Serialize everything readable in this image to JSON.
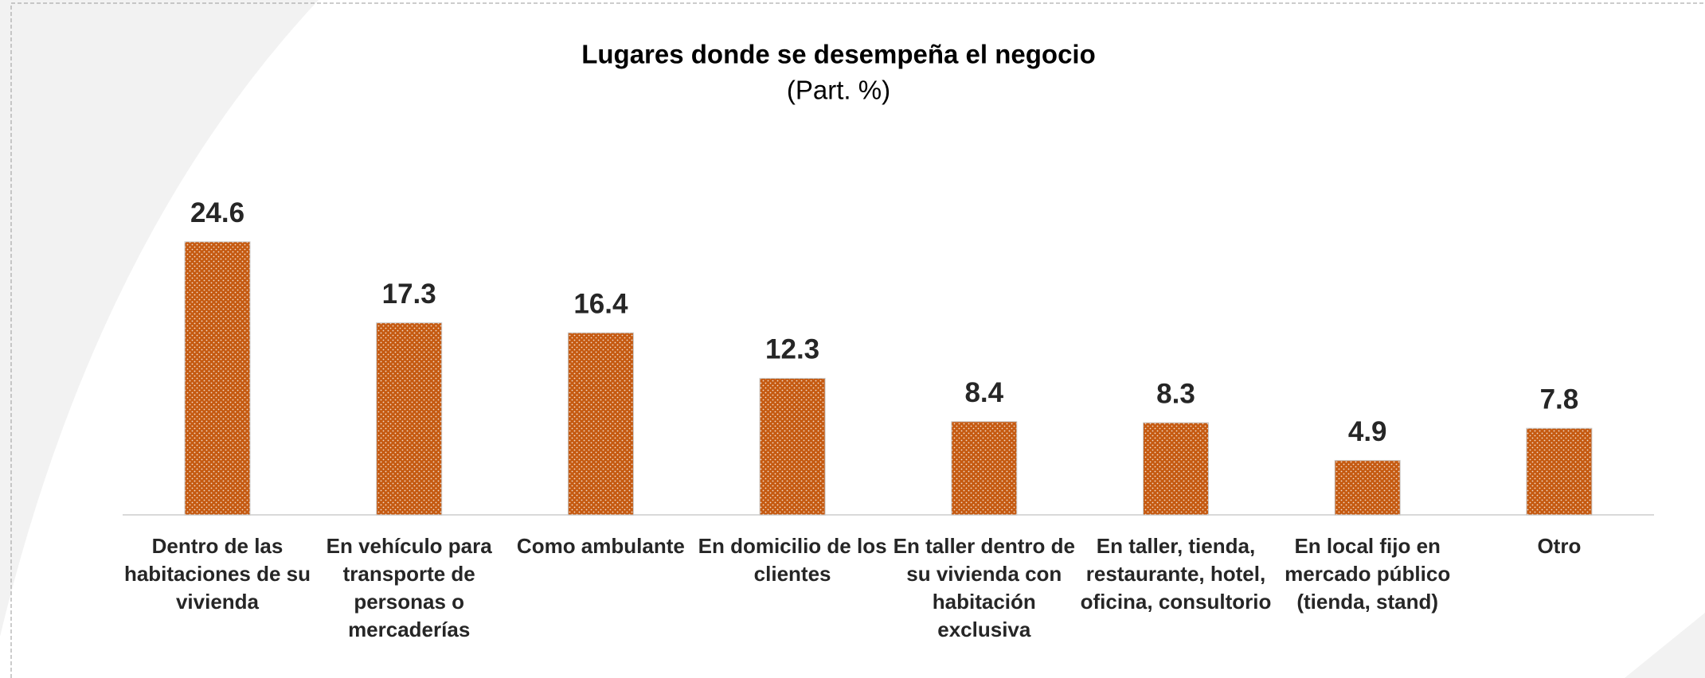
{
  "chart_data": {
    "type": "bar",
    "title": "Lugares donde se desempeña el negocio",
    "subtitle": "(Part. %)",
    "categories": [
      "Dentro de las habitaciones de su vivienda",
      "En vehículo para transporte de personas o mercaderías",
      "Como ambulante",
      "En domicilio de los clientes",
      "En taller dentro de su vivienda con habitación exclusiva",
      "En taller, tienda, restaurante, hotel, oficina, consultorio",
      "En local fijo en mercado público (tienda, stand)",
      "Otro"
    ],
    "values": [
      24.6,
      17.3,
      16.4,
      12.3,
      8.4,
      8.3,
      4.9,
      7.8
    ],
    "color": "#c55a11",
    "ylim": [
      0,
      30
    ]
  }
}
